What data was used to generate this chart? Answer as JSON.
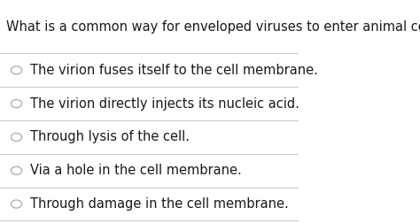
{
  "question": "What is a common way for enveloped viruses to enter animal cells?",
  "options": [
    "The virion fuses itself to the cell membrane.",
    "The virion directly injects its nucleic acid.",
    "Through lysis of the cell.",
    "Via a hole in the cell membrane.",
    "Through damage in the cell membrane."
  ],
  "background_color": "#ffffff",
  "text_color": "#1a1a1a",
  "question_fontsize": 10.5,
  "option_fontsize": 10.5,
  "circle_color": "#aaaaaa",
  "line_color": "#cccccc"
}
